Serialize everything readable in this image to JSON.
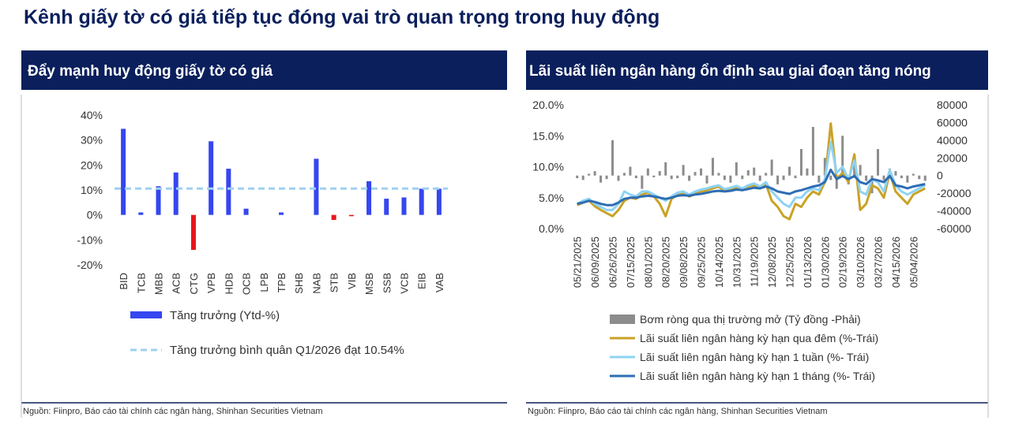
{
  "title": "Kênh giấy tờ có giá tiếp tục đóng vai trò quan trọng trong huy động",
  "chart_data": [
    {
      "type": "bar",
      "title": "Đẩy mạnh huy động giấy tờ có giá",
      "source": "Nguồn: Fiinpro, Báo cáo tài chính các ngân hàng, Shinhan Securities Vietnam",
      "categories": [
        "BID",
        "TCB",
        "MBB",
        "ACB",
        "CTG",
        "VPB",
        "HDB",
        "OCB",
        "LPB",
        "TPB",
        "SHB",
        "NAB",
        "STB",
        "VIB",
        "MSB",
        "SSB",
        "VCB",
        "EIB",
        "VAB"
      ],
      "series": [
        {
          "name": "Tăng trưởng (Ytd-%)",
          "color": "#3546f0",
          "negative_color": "#e8161b",
          "values": [
            34.5,
            1,
            11.5,
            17,
            -14,
            29.5,
            18.5,
            2.5,
            0,
            1,
            0,
            22.5,
            -2,
            -0.5,
            13.5,
            6.5,
            7,
            10.5,
            10.5
          ]
        }
      ],
      "reference_line": {
        "name": "Tăng trưởng bình quân  Q1/2026 đạt 10.54%",
        "value": 10.54,
        "color": "#9fd0f0"
      },
      "ylim": [
        -20,
        40
      ],
      "yticks": [
        {
          "value": -20,
          "label": "-20%"
        },
        {
          "value": -10,
          "label": "-10%"
        },
        {
          "value": 0,
          "label": "0%"
        },
        {
          "value": 10,
          "label": "10%"
        },
        {
          "value": 20,
          "label": "20%"
        },
        {
          "value": 30,
          "label": "30%"
        },
        {
          "value": 40,
          "label": "40%"
        }
      ],
      "grid": false
    },
    {
      "type": "combo",
      "title": "Lãi suất liên ngân hàng ổn định sau giai đoạn tăng nóng",
      "source": "Nguồn: Fiinpro, Báo cáo tài chính các ngân hàng, Shinhan Securities Vietnam",
      "x": [
        "05/21/2025",
        null,
        null,
        "06/09/2025",
        null,
        null,
        "06/26/2025",
        null,
        null,
        "07/15/2025",
        null,
        null,
        "08/01/2025",
        null,
        null,
        "08/20/2025",
        null,
        null,
        "09/08/2025",
        null,
        null,
        "09/25/2025",
        null,
        null,
        "10/14/2025",
        null,
        null,
        "10/31/2025",
        null,
        null,
        "11/19/2025",
        null,
        null,
        "12/08/2025",
        null,
        null,
        "12/25/2025",
        null,
        null,
        "01/13/2026",
        null,
        null,
        "01/30/2026",
        null,
        null,
        "02/19/2026",
        null,
        null,
        "03/10/2026",
        null,
        null,
        "03/27/2026",
        null,
        null,
        "04/15/2026",
        null,
        null,
        "05/04/2026",
        null,
        null
      ],
      "series": [
        {
          "name": "Bơm ròng qua thị trường mở (Tỷ đồng -Phải)",
          "type": "bar",
          "axis": "y2",
          "color": "#8c8c8c",
          "values": [
            -3000,
            -5000,
            2000,
            5000,
            -8000,
            -4000,
            40000,
            -6000,
            3000,
            10000,
            -3000,
            -15000,
            8000,
            -2000,
            5000,
            15000,
            -4000,
            -3000,
            12000,
            -6000,
            4000,
            8000,
            -9000,
            20000,
            3000,
            -5000,
            -8000,
            15000,
            -4000,
            6000,
            9000,
            -6000,
            3000,
            18000,
            -10000,
            -5000,
            10000,
            -3000,
            30000,
            8000,
            55000,
            -8000,
            20000,
            -5000,
            -15000,
            45000,
            -10000,
            22000,
            12000,
            -6000,
            -20000,
            30000,
            -5000,
            8000,
            5000,
            -3000,
            -8000,
            2000,
            -4000,
            -6000
          ]
        },
        {
          "name": "Lãi suất liên ngân hàng kỳ hạn qua đêm (%-Trái)",
          "type": "line",
          "color": "#c9a227",
          "values": [
            3.8,
            4.2,
            4.5,
            3.6,
            3.0,
            2.5,
            2.0,
            3.0,
            4.5,
            5.0,
            4.8,
            5.5,
            5.8,
            5.2,
            4.0,
            2.0,
            4.8,
            5.5,
            5.8,
            5.2,
            5.6,
            6.0,
            6.2,
            6.5,
            6.8,
            6.0,
            6.4,
            6.6,
            6.2,
            6.8,
            7.0,
            6.5,
            7.2,
            4.5,
            3.5,
            2.0,
            1.5,
            4.0,
            3.5,
            5.0,
            6.0,
            5.5,
            7.5,
            17.0,
            8.0,
            9.0,
            7.5,
            12.0,
            3.0,
            4.0,
            7.0,
            6.5,
            5.0,
            9.0,
            6.0,
            5.0,
            4.0,
            5.5,
            6.0,
            6.5
          ]
        },
        {
          "name": "Lãi suất liên ngân hàng kỳ hạn 1 tuần (%- Trái)",
          "type": "line",
          "color": "#8fd3f4",
          "values": [
            4.0,
            4.5,
            4.8,
            4.0,
            3.5,
            3.0,
            3.0,
            4.0,
            6.0,
            5.5,
            5.2,
            6.0,
            6.0,
            5.5,
            5.0,
            4.5,
            5.2,
            5.8,
            6.0,
            5.5,
            6.0,
            6.3,
            6.5,
            6.8,
            7.0,
            6.4,
            6.6,
            6.9,
            6.5,
            7.0,
            7.3,
            6.8,
            7.5,
            6.0,
            5.0,
            4.0,
            3.5,
            5.0,
            5.0,
            6.0,
            6.5,
            6.2,
            8.0,
            14.0,
            9.0,
            10.0,
            8.0,
            11.0,
            6.0,
            5.5,
            8.0,
            7.5,
            6.0,
            9.5,
            7.0,
            6.0,
            5.5,
            6.0,
            6.5,
            7.0
          ]
        },
        {
          "name": "Lãi suất liên ngân hàng kỳ hạn 1 tháng (%- Trái)",
          "type": "line",
          "color": "#2e6db4",
          "values": [
            4.0,
            4.2,
            4.5,
            4.3,
            4.0,
            3.8,
            3.8,
            4.2,
            4.8,
            5.0,
            5.0,
            5.2,
            5.3,
            5.2,
            5.0,
            4.8,
            5.0,
            5.3,
            5.4,
            5.3,
            5.5,
            5.6,
            5.8,
            6.0,
            6.1,
            6.0,
            6.1,
            6.3,
            6.2,
            6.4,
            6.6,
            6.5,
            6.8,
            6.5,
            6.0,
            5.8,
            5.6,
            6.0,
            6.2,
            6.5,
            6.8,
            7.0,
            7.5,
            9.5,
            8.0,
            8.5,
            8.0,
            8.5,
            7.5,
            7.2,
            8.0,
            7.8,
            7.5,
            8.5,
            7.0,
            6.8,
            6.5,
            6.8,
            7.0,
            7.2
          ]
        }
      ],
      "ylim": [
        0,
        20
      ],
      "yticks": [
        {
          "value": 0,
          "label": "0.0%"
        },
        {
          "value": 5,
          "label": "5.0%"
        },
        {
          "value": 10,
          "label": "10.0%"
        },
        {
          "value": 15,
          "label": "15.0%"
        },
        {
          "value": 20,
          "label": "20.0%"
        }
      ],
      "y2lim": [
        -60000,
        80000
      ],
      "y2ticks": [
        -60000,
        -40000,
        -20000,
        0,
        20000,
        40000,
        60000,
        80000
      ]
    }
  ]
}
